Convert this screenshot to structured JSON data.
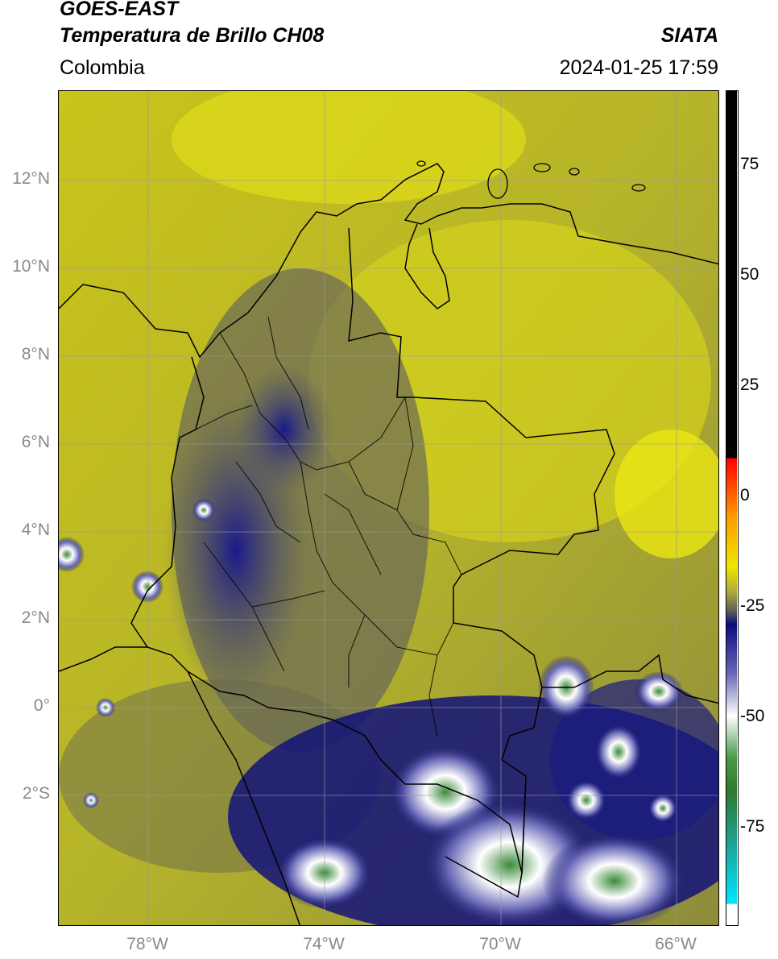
{
  "header": {
    "title_line1": "GOES-EAST",
    "title_line2": "Temperatura de Brillo CH08",
    "region": "Colombia",
    "brand": "SIATA",
    "datetime": "2024-01-25 17:59"
  },
  "map": {
    "lat_labels": [
      "12°N",
      "10°N",
      "8°N",
      "6°N",
      "4°N",
      "2°N",
      "0°",
      "2°S"
    ],
    "lon_labels": [
      "78°W",
      "74°W",
      "70°W",
      "66°W"
    ]
  },
  "colorbar": {
    "ticks": [
      "75",
      "50",
      "25",
      "0",
      "-25",
      "-50",
      "-75"
    ],
    "colors": {
      "black": "#000000",
      "red": "#ff2a00",
      "orange": "#ff9900",
      "yellow": "#e8e400",
      "olive": "#8a8a3a",
      "gray": "#5a5a5a",
      "navy": "#0a0a80",
      "white": "#ffffff",
      "green": "#2e8b2e",
      "teal": "#20c0a0",
      "cyan": "#00e5ff"
    }
  }
}
